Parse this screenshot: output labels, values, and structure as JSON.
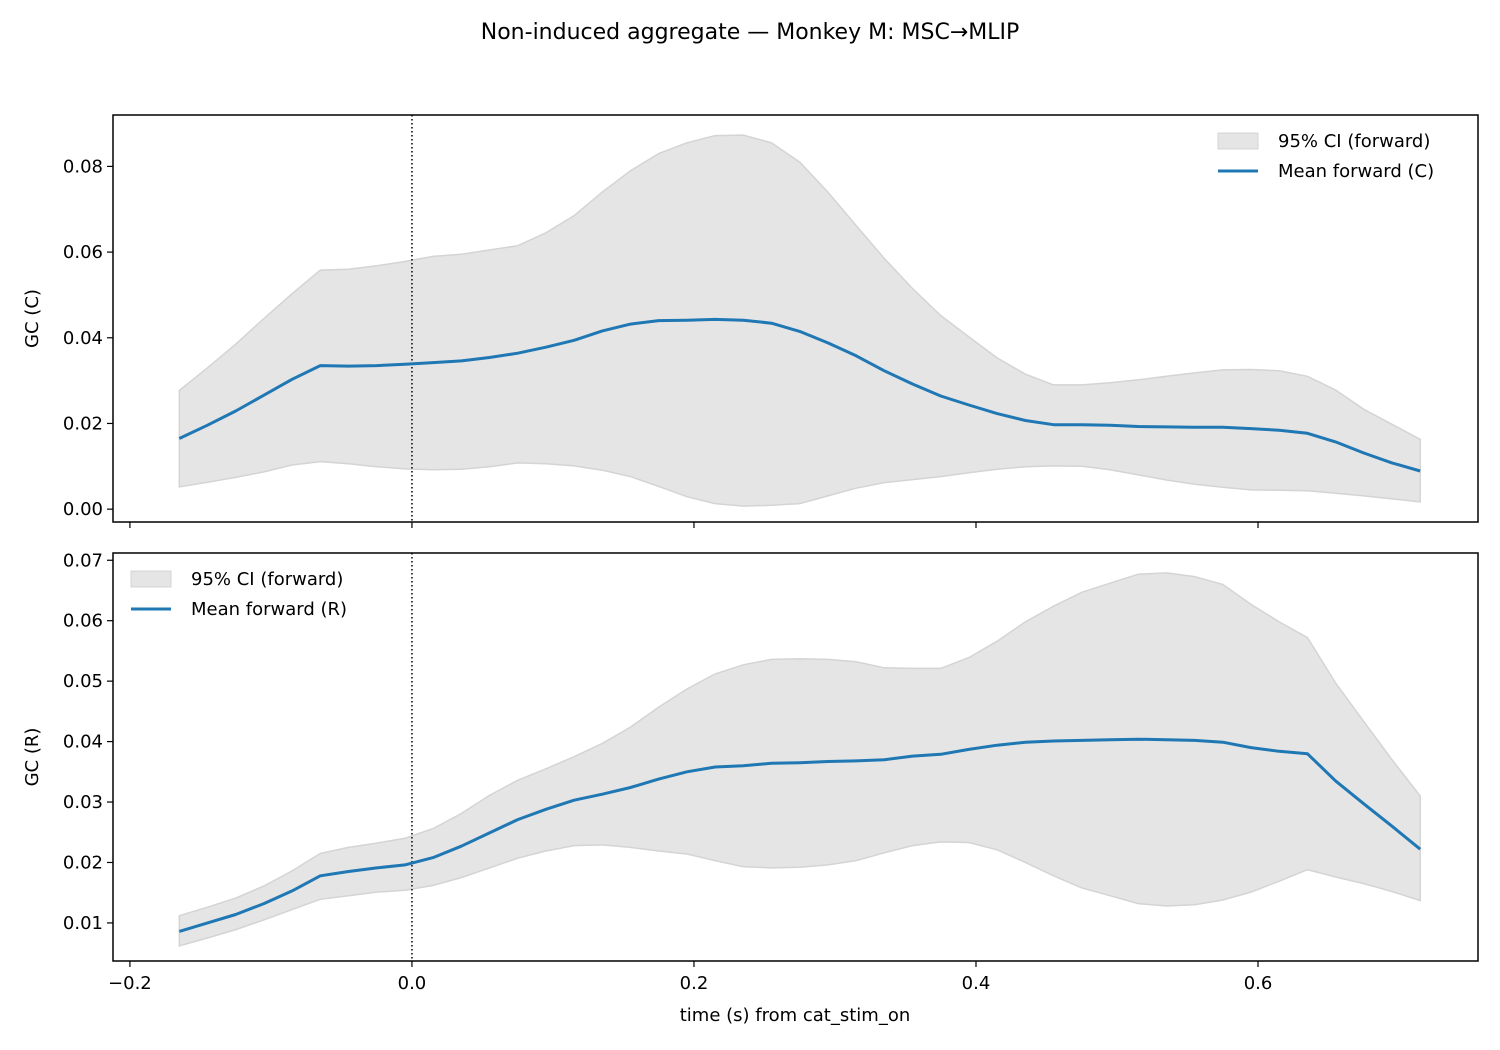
{
  "chart_data": {
    "type": "line",
    "title": "Non-induced aggregate — Monkey M: MSC→MLIP",
    "xlabel": "time (s) from cat_stim_on",
    "xlim": [
      -0.212,
      0.756
    ],
    "xticks": [
      -0.2,
      0.0,
      0.2,
      0.4,
      0.6
    ],
    "xtick_labels": [
      "−0.2",
      "0.0",
      "0.2",
      "0.4",
      "0.6"
    ],
    "event_line_x": 0.0,
    "x": [
      -0.165,
      -0.145,
      -0.125,
      -0.105,
      -0.085,
      -0.065,
      -0.045,
      -0.025,
      -0.005,
      0.015,
      0.035,
      0.055,
      0.075,
      0.095,
      0.115,
      0.135,
      0.155,
      0.175,
      0.195,
      0.215,
      0.235,
      0.255,
      0.275,
      0.295,
      0.315,
      0.335,
      0.355,
      0.375,
      0.395,
      0.415,
      0.435,
      0.455,
      0.475,
      0.495,
      0.515,
      0.535,
      0.555,
      0.575,
      0.595,
      0.615,
      0.635,
      0.655,
      0.675,
      0.695,
      0.715
    ],
    "panels": [
      {
        "ylabel": "GC (C)",
        "ylim": [
          -0.003,
          0.092
        ],
        "yticks": [
          0.0,
          0.02,
          0.04,
          0.06,
          0.08
        ],
        "ytick_labels": [
          "0.00",
          "0.02",
          "0.04",
          "0.06",
          "0.08"
        ],
        "legend_position": "top-right",
        "show_xtick_labels": false,
        "series": [
          {
            "name": "Mean forward (C)",
            "color": "#1f77b4",
            "values": [
              0.0165,
              0.0196,
              0.0229,
              0.0266,
              0.0303,
              0.0335,
              0.0334,
              0.0335,
              0.0338,
              0.0342,
              0.0346,
              0.0354,
              0.0364,
              0.0378,
              0.0394,
              0.0416,
              0.0432,
              0.044,
              0.0441,
              0.0443,
              0.0441,
              0.0434,
              0.0415,
              0.0388,
              0.0358,
              0.0323,
              0.0292,
              0.0264,
              0.0243,
              0.0223,
              0.0207,
              0.0197,
              0.0197,
              0.0196,
              0.0193,
              0.0192,
              0.0191,
              0.0191,
              0.0188,
              0.0184,
              0.0177,
              0.0157,
              0.0131,
              0.0108,
              0.0089
            ]
          }
        ],
        "band": {
          "name": "95% CI (forward)",
          "color": "#e5e5e5",
          "edge_color": "#d4d4d4",
          "upper": [
            0.0277,
            0.033,
            0.0385,
            0.0445,
            0.0503,
            0.0558,
            0.056,
            0.0568,
            0.0578,
            0.059,
            0.0595,
            0.0605,
            0.0615,
            0.0645,
            0.0685,
            0.074,
            0.079,
            0.083,
            0.0855,
            0.0872,
            0.0873,
            0.0855,
            0.081,
            0.074,
            0.0662,
            0.0585,
            0.0515,
            0.0452,
            0.0402,
            0.0353,
            0.0315,
            0.029,
            0.029,
            0.0295,
            0.0302,
            0.031,
            0.0318,
            0.0325,
            0.0326,
            0.0323,
            0.031,
            0.0278,
            0.0233,
            0.0198,
            0.0163
          ],
          "lower": [
            0.0052,
            0.0063,
            0.0074,
            0.0087,
            0.0103,
            0.0111,
            0.0106,
            0.0099,
            0.0094,
            0.0092,
            0.0093,
            0.0099,
            0.0108,
            0.0106,
            0.0101,
            0.0091,
            0.0076,
            0.0053,
            0.0029,
            0.0013,
            0.0007,
            0.0009,
            0.0013,
            0.0031,
            0.0049,
            0.0062,
            0.0069,
            0.0076,
            0.0085,
            0.0093,
            0.0099,
            0.0101,
            0.01,
            0.0092,
            0.008,
            0.0068,
            0.0058,
            0.0051,
            0.0045,
            0.0044,
            0.0043,
            0.0037,
            0.0031,
            0.0024,
            0.0017
          ]
        }
      },
      {
        "ylabel": "GC (R)",
        "ylim": [
          0.0037,
          0.0712
        ],
        "yticks": [
          0.01,
          0.02,
          0.03,
          0.04,
          0.05,
          0.06,
          0.07
        ],
        "ytick_labels": [
          "0.01",
          "0.02",
          "0.03",
          "0.04",
          "0.05",
          "0.06",
          "0.07"
        ],
        "legend_position": "top-left",
        "show_xtick_labels": true,
        "series": [
          {
            "name": "Mean forward (R)",
            "color": "#1f77b4",
            "values": [
              0.0086,
              0.01,
              0.0114,
              0.0132,
              0.0153,
              0.0178,
              0.0185,
              0.0191,
              0.0196,
              0.0208,
              0.0227,
              0.0249,
              0.0271,
              0.0288,
              0.0303,
              0.0313,
              0.0324,
              0.0338,
              0.035,
              0.0358,
              0.036,
              0.0364,
              0.0365,
              0.0367,
              0.0368,
              0.037,
              0.0376,
              0.0379,
              0.0387,
              0.0394,
              0.0399,
              0.0401,
              0.0402,
              0.0403,
              0.0404,
              0.0403,
              0.0402,
              0.0399,
              0.039,
              0.0384,
              0.038,
              0.0335,
              0.0297,
              0.026,
              0.0222
            ]
          }
        ],
        "band": {
          "name": "95% CI (forward)",
          "color": "#e5e5e5",
          "edge_color": "#d4d4d4",
          "upper": [
            0.0112,
            0.0126,
            0.0141,
            0.0161,
            0.0186,
            0.0215,
            0.0225,
            0.0232,
            0.024,
            0.0256,
            0.0281,
            0.0311,
            0.0336,
            0.0355,
            0.0375,
            0.0397,
            0.0424,
            0.0457,
            0.0487,
            0.0512,
            0.0527,
            0.0536,
            0.0537,
            0.0536,
            0.0532,
            0.0522,
            0.0521,
            0.0521,
            0.0539,
            0.0566,
            0.0598,
            0.0624,
            0.0647,
            0.0662,
            0.0677,
            0.0679,
            0.0673,
            0.066,
            0.0627,
            0.0598,
            0.0572,
            0.0497,
            0.0433,
            0.037,
            0.031
          ],
          "lower": [
            0.0062,
            0.0075,
            0.0089,
            0.0105,
            0.0122,
            0.0139,
            0.0145,
            0.0151,
            0.0154,
            0.0162,
            0.0175,
            0.0191,
            0.0207,
            0.0219,
            0.0228,
            0.0229,
            0.0225,
            0.0219,
            0.0214,
            0.0203,
            0.0193,
            0.0191,
            0.0192,
            0.0196,
            0.0203,
            0.0216,
            0.0228,
            0.0234,
            0.0233,
            0.0221,
            0.02,
            0.0178,
            0.0158,
            0.0145,
            0.0132,
            0.0128,
            0.013,
            0.0138,
            0.0151,
            0.0169,
            0.0188,
            0.0176,
            0.0165,
            0.0152,
            0.0137
          ]
        }
      }
    ]
  }
}
